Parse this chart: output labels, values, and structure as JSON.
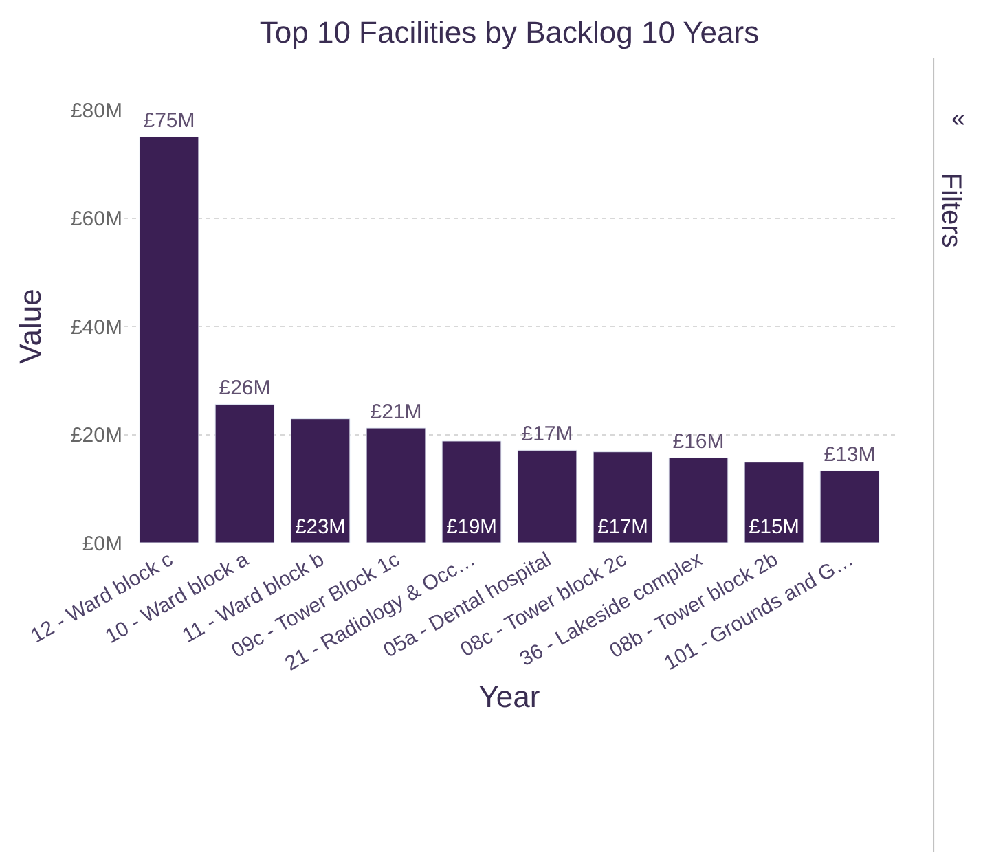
{
  "chart_data": {
    "type": "bar",
    "title": "Top 10 Facilities by Backlog 10 Years",
    "xlabel": "Year",
    "ylabel": "Value",
    "categories": [
      "12 - Ward block c",
      "10 - Ward block a",
      "11 - Ward block b",
      "09c - Tower Block 1c",
      "21 - Radiology & Occ…",
      "05a - Dental hospital",
      "08c - Tower block 2c",
      "36 - Lakeside complex",
      "08b - Tower block 2b",
      "101 - Grounds and G…"
    ],
    "values": [
      75,
      25.6,
      22.9,
      21.2,
      18.8,
      17.1,
      16.8,
      15.7,
      14.9,
      13.3
    ],
    "value_labels": [
      "£75M",
      "£26M",
      "£23M",
      "£21M",
      "£19M",
      "£17M",
      "£17M",
      "£16M",
      "£15M",
      "£13M"
    ],
    "color": "#3b1f54",
    "ylim": [
      0,
      80
    ],
    "yticks": [
      {
        "value": 0,
        "label": "£0M"
      },
      {
        "value": 20,
        "label": "£20M"
      },
      {
        "value": 40,
        "label": "£40M"
      },
      {
        "value": 60,
        "label": "£60M"
      },
      {
        "value": 80,
        "label": "£80M"
      }
    ],
    "grid": "y",
    "annotations": [
      "«",
      "Filters"
    ]
  }
}
